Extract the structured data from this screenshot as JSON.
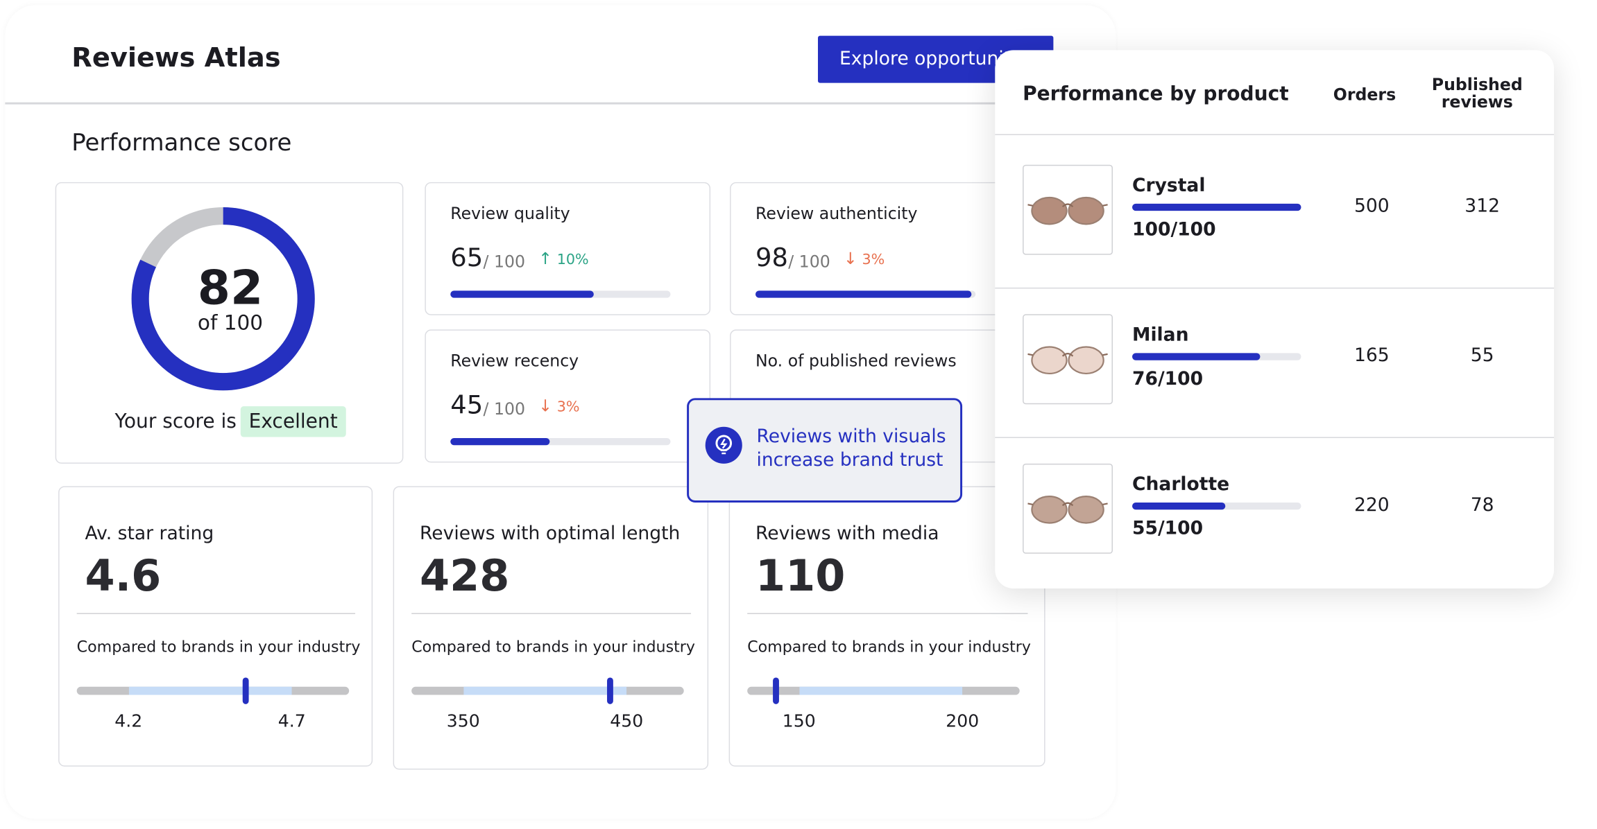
{
  "header": {
    "title": "Reviews Atlas",
    "button": "Explore opportunities"
  },
  "section_title": "Performance score",
  "score": {
    "value": 82,
    "max": {
      "value": 100,
      "label": "of 100"
    },
    "caption": "Your score is",
    "rating": "Excellent"
  },
  "metrics": [
    {
      "title": "Review quality",
      "value": 65,
      "max": {
        "value": 100,
        "label": "/ 100"
      },
      "change": {
        "value": 10,
        "label": "10%",
        "direction": "up"
      }
    },
    {
      "title": "Review authenticity",
      "value": 98,
      "max": {
        "value": 100,
        "label": "/ 100"
      },
      "change": {
        "value": 3,
        "label": "3%",
        "direction": "down"
      }
    },
    {
      "title": "Review recency",
      "value": 45,
      "max": {
        "value": 100,
        "label": "/ 100"
      },
      "change": {
        "value": 3,
        "label": "3%",
        "direction": "down"
      }
    },
    {
      "title": "No. of published reviews"
    }
  ],
  "tooltip": "Reviews with visuals increase brand trust",
  "stats": [
    {
      "title": "Av. star rating",
      "value": 4.6,
      "compare": "Compared to brands in your industry",
      "range": [
        4.2,
        4.7
      ],
      "marker": 4.56
    },
    {
      "title": "Reviews with optimal length",
      "value": 428,
      "compare": "Compared to brands in your industry",
      "range": [
        350,
        450
      ],
      "marker": 440
    },
    {
      "title": "Reviews with media",
      "value": 110,
      "compare": "Compared to brands in your industry",
      "range": [
        150,
        200
      ],
      "marker": 143
    }
  ],
  "products": {
    "title": "Performance by product",
    "columns": [
      "Orders",
      "Published reviews"
    ],
    "score_max": 100,
    "rows": [
      {
        "name": "Crystal",
        "score": {
          "value": 100,
          "label": "100/100"
        },
        "orders": 500,
        "reviews": 312
      },
      {
        "name": "Milan",
        "score": {
          "value": 76,
          "label": "76/100"
        },
        "orders": 165,
        "reviews": 55
      },
      {
        "name": "Charlotte",
        "score": {
          "value": 55,
          "label": "55/100"
        },
        "orders": 220,
        "reviews": 78
      }
    ]
  }
}
